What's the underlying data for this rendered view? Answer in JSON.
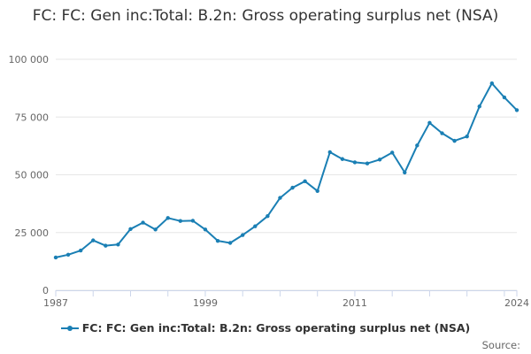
{
  "colors": {
    "series": "#1a7fb4",
    "grid": "#e6e6e6",
    "axis": "#ccd6eb",
    "tick_text": "#666666"
  },
  "legend": {
    "label": "FC: FC: Gen inc:Total: B.2n: Gross operating surplus net (NSA)"
  },
  "source": {
    "label": "Source:"
  },
  "chart_data": {
    "type": "line",
    "title": "FC: FC: Gen inc:Total: B.2n: Gross operating surplus net (NSA)",
    "xlabel": "",
    "ylabel": "",
    "xlim": [
      1987,
      2024
    ],
    "ylim": [
      0,
      100000
    ],
    "x_ticks": [
      1987,
      1999,
      2011,
      2024
    ],
    "y_ticks": [
      0,
      25000,
      50000,
      75000,
      100000
    ],
    "y_tick_labels": [
      "0",
      "25 000",
      "50 000",
      "75 000",
      "100 000"
    ],
    "grid": true,
    "legend_position": "bottom-center",
    "series": [
      {
        "name": "FC: FC: Gen inc:Total: B.2n: Gross operating surplus net (NSA)",
        "x": [
          1987,
          1988,
          1989,
          1990,
          1991,
          1992,
          1993,
          1994,
          1995,
          1996,
          1997,
          1998,
          1999,
          2000,
          2001,
          2002,
          2003,
          2004,
          2005,
          2006,
          2007,
          2008,
          2009,
          2010,
          2011,
          2012,
          2013,
          2014,
          2015,
          2016,
          2017,
          2018,
          2019,
          2020,
          2021,
          2022,
          2023,
          2024
        ],
        "values": [
          14200,
          15400,
          17200,
          21600,
          19300,
          19800,
          26500,
          29300,
          26300,
          31300,
          30000,
          30100,
          26300,
          21400,
          20500,
          23900,
          27700,
          32100,
          40000,
          44400,
          47200,
          43000,
          59800,
          56800,
          55400,
          54900,
          56600,
          59600,
          51000,
          62700,
          72500,
          68000,
          64700,
          66600,
          79600,
          89600,
          83500,
          78000
        ]
      }
    ]
  }
}
